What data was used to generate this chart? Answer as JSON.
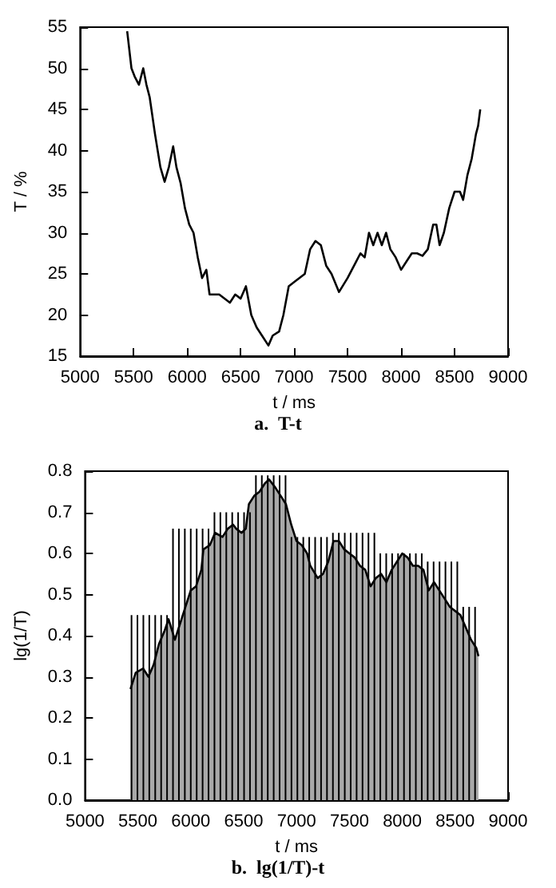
{
  "chart_data": [
    {
      "type": "line",
      "xlabel": "t / ms",
      "ylabel": "T / %",
      "annotations": [
        "a.  T-t"
      ],
      "xlim": [
        5000,
        9000
      ],
      "xticks": [
        5000,
        5500,
        6000,
        6500,
        7000,
        7500,
        8000,
        8500,
        9000
      ],
      "ylim": [
        15,
        55
      ],
      "yticks": [
        15,
        20,
        25,
        30,
        35,
        40,
        45,
        50,
        55
      ],
      "marker": "none",
      "line_style": "solid",
      "series": [
        {
          "color": "#000000",
          "x": [
            5440,
            5480,
            5510,
            5550,
            5590,
            5620,
            5650,
            5700,
            5750,
            5790,
            5830,
            5870,
            5900,
            5940,
            5980,
            6020,
            6060,
            6100,
            6140,
            6180,
            6210,
            6300,
            6400,
            6450,
            6500,
            6550,
            6600,
            6650,
            6700,
            6760,
            6800,
            6860,
            6900,
            6950,
            7000,
            7100,
            7150,
            7200,
            7250,
            7300,
            7350,
            7420,
            7500,
            7580,
            7620,
            7660,
            7700,
            7740,
            7780,
            7820,
            7860,
            7900,
            7950,
            8000,
            8050,
            8100,
            8150,
            8200,
            8250,
            8300,
            8330,
            8360,
            8400,
            8450,
            8500,
            8550,
            8580,
            8620,
            8660,
            8700,
            8720,
            8740
          ],
          "values": [
            54.5,
            50,
            49,
            48,
            50,
            48,
            46.5,
            42,
            38,
            36.2,
            38,
            40.5,
            38,
            36,
            33,
            31,
            30,
            27,
            24.5,
            25.5,
            22.5,
            22.5,
            21.5,
            22.5,
            22,
            23.5,
            20,
            18.5,
            17.5,
            16.3,
            17.5,
            18,
            20,
            23.5,
            24,
            25,
            28,
            29,
            28.5,
            26,
            25,
            22.8,
            24.5,
            26.5,
            27.5,
            27,
            30,
            28.5,
            30,
            28.5,
            30,
            28,
            27,
            25.5,
            26.5,
            27.5,
            27.5,
            27.2,
            28,
            31,
            31,
            28.5,
            30,
            33,
            35,
            35,
            34,
            37,
            39,
            42,
            43,
            45
          ]
        }
      ]
    },
    {
      "type": "area",
      "xlabel": "t / ms",
      "ylabel": "lg(1/T)",
      "annotations": [
        "b.  lg(1/T)-t"
      ],
      "xlim": [
        5000,
        9000
      ],
      "xticks": [
        5000,
        5500,
        6000,
        6500,
        7000,
        7500,
        8000,
        8500,
        9000
      ],
      "ylim": [
        0,
        0.8
      ],
      "yticks": [
        {
          "value": 0,
          "label": "0.0"
        },
        0.1,
        0.2,
        0.3,
        0.4,
        0.5,
        0.6,
        0.7,
        0.8
      ],
      "marker": "none",
      "line_style": "solid",
      "series": [
        {
          "color": "#a9a9a9",
          "x": [
            5430,
            5480,
            5550,
            5600,
            5650,
            5700,
            5750,
            5790,
            5850,
            5900,
            5950,
            6000,
            6050,
            6100,
            6120,
            6180,
            6230,
            6300,
            6350,
            6400,
            6430,
            6480,
            6520,
            6550,
            6600,
            6650,
            6700,
            6740,
            6800,
            6850,
            6900,
            6950,
            7000,
            7050,
            7100,
            7130,
            7200,
            7250,
            7300,
            7350,
            7400,
            7450,
            7500,
            7550,
            7600,
            7650,
            7700,
            7750,
            7800,
            7850,
            7900,
            7950,
            8000,
            8050,
            8100,
            8150,
            8200,
            8250,
            8300,
            8350,
            8400,
            8450,
            8500,
            8550,
            8600,
            8650,
            8700,
            8720
          ],
          "values": [
            0.27,
            0.31,
            0.32,
            0.3,
            0.33,
            0.38,
            0.41,
            0.44,
            0.39,
            0.43,
            0.47,
            0.51,
            0.52,
            0.56,
            0.61,
            0.62,
            0.65,
            0.64,
            0.66,
            0.67,
            0.66,
            0.65,
            0.66,
            0.72,
            0.74,
            0.75,
            0.77,
            0.78,
            0.76,
            0.74,
            0.72,
            0.67,
            0.63,
            0.62,
            0.6,
            0.57,
            0.54,
            0.55,
            0.58,
            0.63,
            0.63,
            0.61,
            0.6,
            0.59,
            0.57,
            0.56,
            0.52,
            0.54,
            0.55,
            0.53,
            0.56,
            0.58,
            0.6,
            0.59,
            0.57,
            0.57,
            0.56,
            0.51,
            0.53,
            0.51,
            0.49,
            0.47,
            0.46,
            0.45,
            0.42,
            0.39,
            0.37,
            0.35
          ]
        },
        {
          "type": "bar",
          "color": "#000000",
          "x": [
            5440,
            5496,
            5552,
            5608,
            5664,
            5720,
            5776,
            5832,
            5888,
            5944,
            6000,
            6056,
            6112,
            6168,
            6224,
            6280,
            6336,
            6392,
            6448,
            6504,
            6560,
            6616,
            6672,
            6728,
            6784,
            6840,
            6896,
            6952,
            7008,
            7064,
            7120,
            7176,
            7232,
            7288,
            7344,
            7400,
            7456,
            7512,
            7568,
            7624,
            7680,
            7736,
            7792,
            7848,
            7904,
            7960,
            8016,
            8072,
            8128,
            8184,
            8240,
            8296,
            8352,
            8408,
            8464,
            8520,
            8576,
            8632,
            8688
          ],
          "values": [
            0.45,
            0.45,
            0.45,
            0.45,
            0.45,
            0.45,
            0.45,
            0.66,
            0.66,
            0.66,
            0.66,
            0.66,
            0.66,
            0.66,
            0.7,
            0.7,
            0.7,
            0.7,
            0.7,
            0.7,
            0.7,
            0.79,
            0.79,
            0.79,
            0.79,
            0.79,
            0.79,
            0.64,
            0.64,
            0.64,
            0.64,
            0.64,
            0.64,
            0.64,
            0.65,
            0.65,
            0.65,
            0.65,
            0.65,
            0.65,
            0.65,
            0.65,
            0.6,
            0.6,
            0.6,
            0.6,
            0.6,
            0.6,
            0.6,
            0.6,
            0.58,
            0.58,
            0.58,
            0.58,
            0.58,
            0.58,
            0.47,
            0.47,
            0.47
          ]
        }
      ]
    }
  ]
}
